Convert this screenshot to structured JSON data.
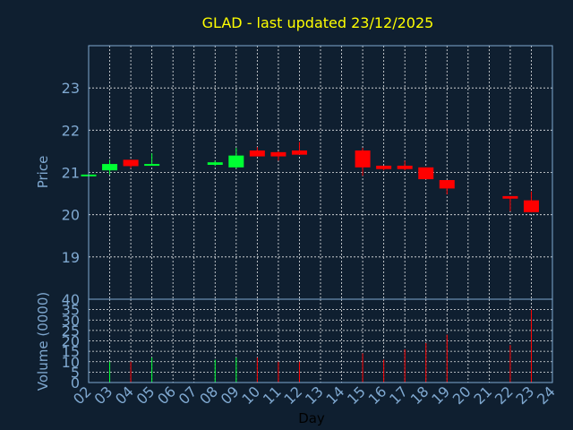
{
  "chart_data": {
    "type": "candlestick",
    "title": "GLAD - last updated 23/12/2025",
    "xlabel": "Day",
    "price_ylabel": "Price",
    "volume_ylabel": "Volume (0000)",
    "x_ticks": [
      "02",
      "03",
      "04",
      "05",
      "06",
      "07",
      "08",
      "09",
      "10",
      "11",
      "12",
      "13",
      "14",
      "15",
      "16",
      "17",
      "18",
      "19",
      "20",
      "21",
      "22",
      "23",
      "24"
    ],
    "price_ylim": [
      18,
      24
    ],
    "price_ticks": [
      19,
      20,
      21,
      22,
      23
    ],
    "volume_ylim": [
      0,
      40
    ],
    "volume_ticks": [
      0,
      5,
      10,
      15,
      20,
      25,
      30,
      35,
      40
    ],
    "grid": true,
    "colors": {
      "up": "#00ff33",
      "down": "#ff0000",
      "title": "#ffff00",
      "axis": "#7fa8d0",
      "background": "#0f1f30"
    },
    "candles": [
      {
        "day": 2,
        "open": 20.92,
        "close": 20.95,
        "high": 20.95,
        "low": 20.92,
        "volume": 0
      },
      {
        "day": 3,
        "open": 21.05,
        "close": 21.2,
        "high": 21.3,
        "low": 20.95,
        "volume": 10
      },
      {
        "day": 4,
        "open": 21.3,
        "close": 21.15,
        "high": 21.3,
        "low": 21.1,
        "volume": 10
      },
      {
        "day": 5,
        "open": 21.16,
        "close": 21.2,
        "high": 21.45,
        "low": 21.16,
        "volume": 12
      },
      {
        "day": 8,
        "open": 21.18,
        "close": 21.24,
        "high": 21.28,
        "low": 21.15,
        "volume": 11
      },
      {
        "day": 9,
        "open": 21.12,
        "close": 21.4,
        "high": 21.58,
        "low": 21.1,
        "volume": 12
      },
      {
        "day": 10,
        "open": 21.52,
        "close": 21.38,
        "high": 21.6,
        "low": 21.38,
        "volume": 12
      },
      {
        "day": 11,
        "open": 21.48,
        "close": 21.38,
        "high": 21.5,
        "low": 21.28,
        "volume": 10
      },
      {
        "day": 12,
        "open": 21.52,
        "close": 21.42,
        "high": 21.72,
        "low": 21.42,
        "volume": 10
      },
      {
        "day": 15,
        "open": 21.52,
        "close": 21.12,
        "high": 21.58,
        "low": 20.92,
        "volume": 14
      },
      {
        "day": 16,
        "open": 21.16,
        "close": 21.08,
        "high": 21.16,
        "low": 21.05,
        "volume": 11
      },
      {
        "day": 17,
        "open": 21.16,
        "close": 21.08,
        "high": 21.28,
        "low": 21.05,
        "volume": 16
      },
      {
        "day": 18,
        "open": 21.12,
        "close": 20.84,
        "high": 21.12,
        "low": 20.84,
        "volume": 19
      },
      {
        "day": 19,
        "open": 20.82,
        "close": 20.62,
        "high": 20.82,
        "low": 20.48,
        "volume": 23
      },
      {
        "day": 22,
        "open": 20.44,
        "close": 20.38,
        "high": 20.44,
        "low": 20.08,
        "volume": 18
      },
      {
        "day": 23,
        "open": 20.34,
        "close": 20.06,
        "high": 20.55,
        "low": 20.06,
        "volume": 35
      }
    ]
  }
}
